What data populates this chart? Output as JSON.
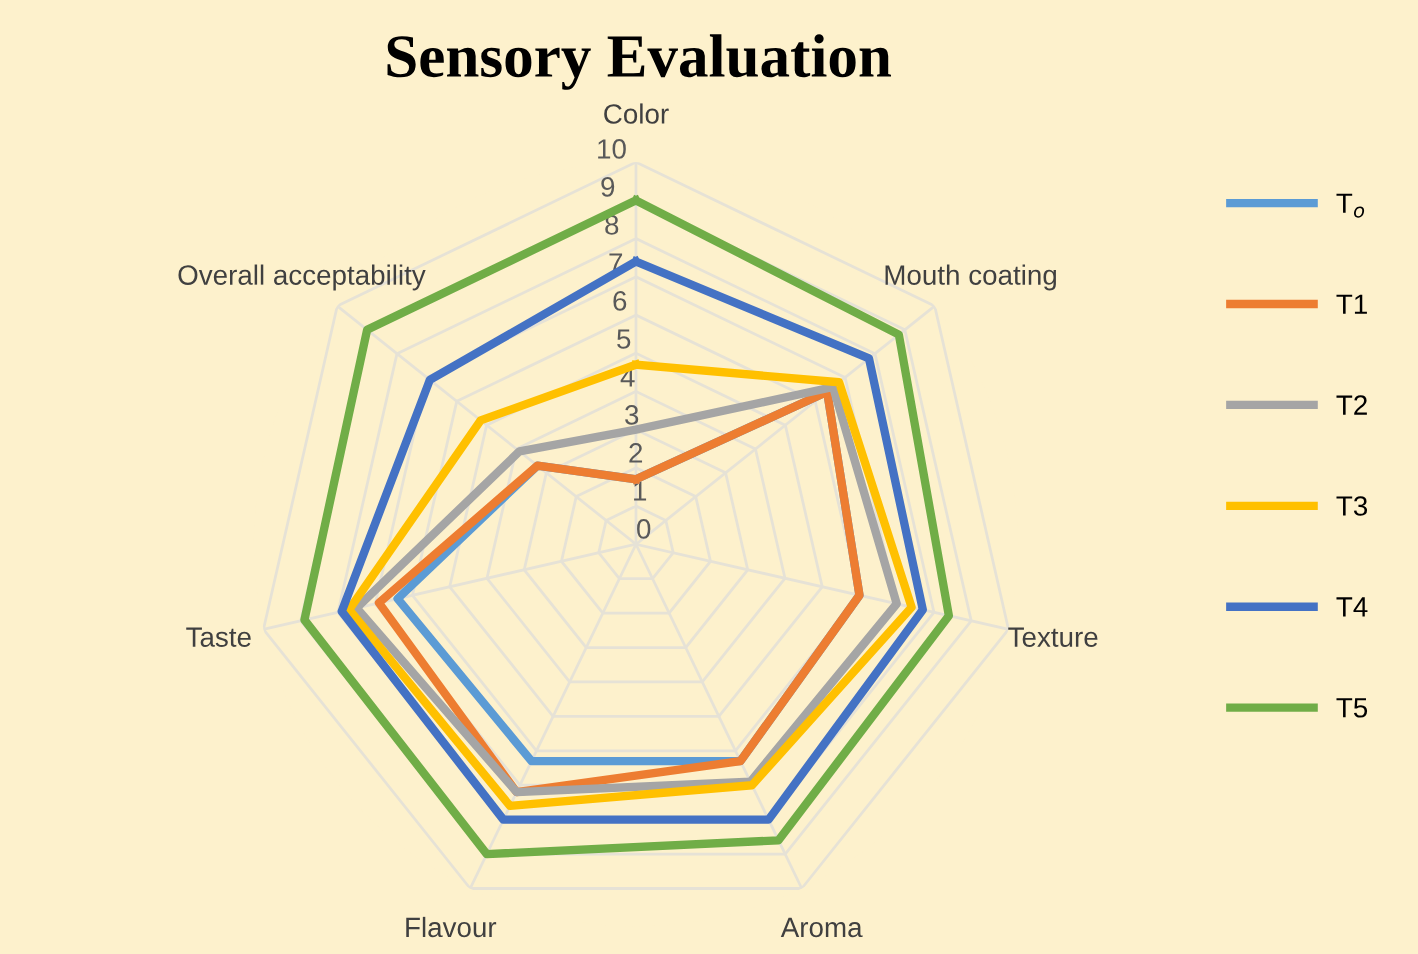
{
  "chart_data": {
    "type": "radar",
    "title": "Sensory Evaluation",
    "categories": [
      "Color",
      "Mouth coating",
      "Texture",
      "Aroma",
      "Flavour",
      "Taste",
      "Overall acceptability"
    ],
    "series": [
      {
        "name": "T$_{o}$",
        "color": "#5b9bd5",
        "values": [
          1.7,
          6.4,
          6.0,
          6.3,
          6.3,
          6.4,
          3.3
        ]
      },
      {
        "name": "T1",
        "color": "#ed7d31",
        "values": [
          1.7,
          6.4,
          6.0,
          6.3,
          7.2,
          6.9,
          3.3
        ]
      },
      {
        "name": "T2",
        "color": "#a5a5a5",
        "values": [
          3.0,
          6.6,
          7.0,
          6.9,
          7.2,
          7.5,
          3.9
        ]
      },
      {
        "name": "T3",
        "color": "#ffc000",
        "values": [
          4.7,
          6.8,
          7.4,
          7.0,
          7.6,
          7.7,
          5.2
        ]
      },
      {
        "name": "T4",
        "color": "#4472c4",
        "values": [
          7.4,
          7.8,
          7.7,
          8.0,
          8.0,
          7.9,
          6.9
        ]
      },
      {
        "name": "T5",
        "color": "#70ad47",
        "values": [
          9.0,
          8.8,
          8.4,
          8.6,
          9.0,
          8.9,
          9.0
        ]
      }
    ],
    "ylim": [
      0,
      10
    ],
    "yticks": [
      0,
      1,
      2,
      3,
      4,
      5,
      6,
      7,
      8,
      9,
      10
    ],
    "grid": true,
    "legend": "right",
    "marker": "none",
    "line_style": "solid"
  }
}
